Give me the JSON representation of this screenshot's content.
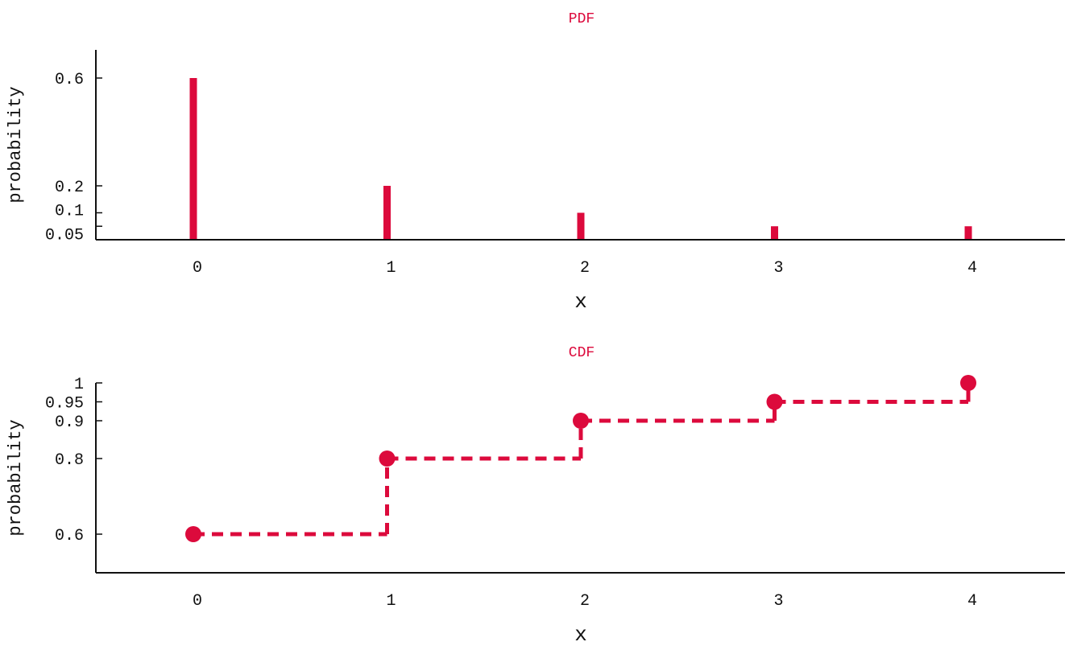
{
  "colors": {
    "accent": "#dc0a3c",
    "axis": "#111111"
  },
  "chart_data": [
    {
      "type": "bar",
      "title": "PDF",
      "xlabel": "x",
      "ylabel": "probability",
      "x": [
        0,
        1,
        2,
        3,
        4
      ],
      "values": [
        0.6,
        0.2,
        0.1,
        0.05,
        0.05
      ],
      "xticks": [
        "0",
        "1",
        "2",
        "3",
        "4"
      ],
      "yticks": [
        {
          "value": 0.6,
          "label": "0.6"
        },
        {
          "value": 0.2,
          "label": "0.2"
        },
        {
          "value": 0.1,
          "label": "0.1"
        },
        {
          "value": 0.05,
          "label": "0.05"
        }
      ],
      "xlim": [
        -0.5,
        4.5
      ],
      "ylim": [
        0,
        0.7
      ],
      "grid": false
    },
    {
      "type": "line",
      "style": "step-dashed-with-markers",
      "title": "CDF",
      "xlabel": "x",
      "ylabel": "probability",
      "x": [
        0,
        1,
        2,
        3,
        4
      ],
      "values": [
        0.6,
        0.8,
        0.9,
        0.95,
        1.0
      ],
      "xticks": [
        "0",
        "1",
        "2",
        "3",
        "4"
      ],
      "yticks": [
        {
          "value": 0.6,
          "label": "0.6"
        },
        {
          "value": 0.8,
          "label": "0.8"
        },
        {
          "value": 0.9,
          "label": "0.9"
        },
        {
          "value": 0.95,
          "label": "0.95"
        },
        {
          "value": 1.0,
          "label": "1"
        }
      ],
      "xlim": [
        -0.5,
        4.5
      ],
      "ylim": [
        0.5,
        1.0
      ],
      "grid": false
    }
  ]
}
